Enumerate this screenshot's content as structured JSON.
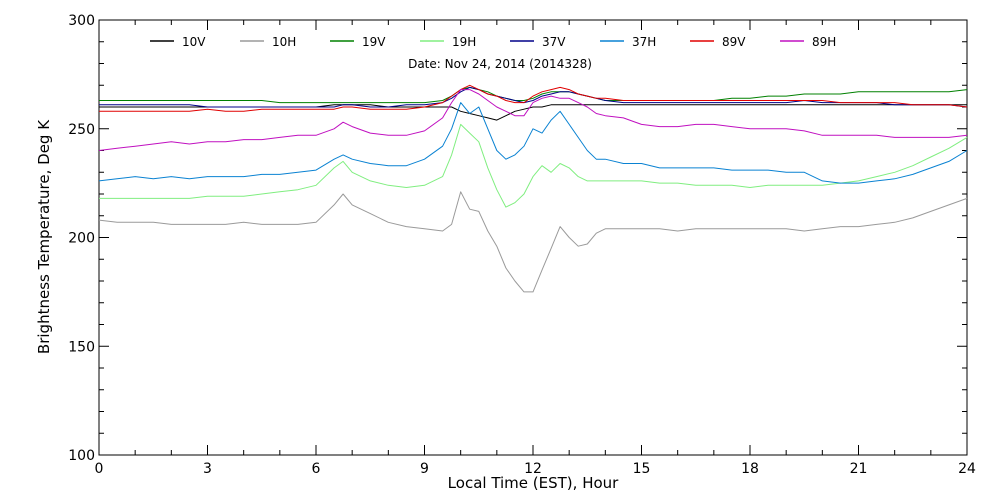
{
  "chart_data": {
    "type": "line",
    "annotation": "Date: Nov 24, 2014 (2014328)",
    "xlabel": "Local Time (EST), Hour",
    "ylabel": "Brightness Temperature, Deg K",
    "xlim": [
      0,
      24
    ],
    "ylim": [
      100,
      300
    ],
    "xticks": [
      0,
      3,
      6,
      9,
      12,
      15,
      18,
      21,
      24
    ],
    "yticks": [
      100,
      150,
      200,
      250,
      300
    ],
    "grid": false,
    "legend_position": "top",
    "x": [
      0,
      0.5,
      1,
      1.5,
      2,
      2.5,
      3,
      3.5,
      4,
      4.5,
      5,
      5.5,
      6,
      6.5,
      6.75,
      7,
      7.5,
      8,
      8.5,
      9,
      9.5,
      9.75,
      10,
      10.25,
      10.5,
      10.75,
      11,
      11.25,
      11.5,
      11.75,
      12,
      12.25,
      12.5,
      12.75,
      13,
      13.25,
      13.5,
      13.75,
      14,
      14.5,
      15,
      15.5,
      16,
      16.5,
      17,
      17.5,
      18,
      18.5,
      19,
      19.5,
      20,
      20.5,
      21,
      21.5,
      22,
      22.5,
      23,
      23.5,
      24
    ],
    "series": [
      {
        "name": "10V",
        "color": "#000000",
        "values": [
          260,
          260,
          260,
          260,
          260,
          260,
          260,
          260,
          260,
          260,
          260,
          260,
          260,
          261,
          261,
          261,
          261,
          260,
          260,
          260,
          260,
          260,
          258,
          257,
          256,
          255,
          254,
          256,
          258,
          259,
          260,
          260,
          261,
          261,
          261,
          261,
          261,
          261,
          261,
          261,
          261,
          261,
          261,
          261,
          261,
          261,
          261,
          261,
          261,
          261,
          261,
          261,
          261,
          261,
          261,
          261,
          261,
          261,
          261
        ]
      },
      {
        "name": "10H",
        "color": "#9a9a9a",
        "values": [
          208,
          207,
          207,
          207,
          206,
          206,
          206,
          206,
          207,
          206,
          206,
          206,
          207,
          215,
          220,
          215,
          211,
          207,
          205,
          204,
          203,
          206,
          221,
          213,
          212,
          203,
          196,
          186,
          180,
          175,
          175,
          185,
          195,
          205,
          200,
          196,
          197,
          202,
          204,
          204,
          204,
          204,
          203,
          204,
          204,
          204,
          204,
          204,
          204,
          203,
          204,
          205,
          205,
          206,
          207,
          209,
          212,
          215,
          218
        ]
      },
      {
        "name": "19V",
        "color": "#008000",
        "values": [
          263,
          263,
          263,
          263,
          263,
          263,
          263,
          263,
          263,
          263,
          262,
          262,
          262,
          262,
          262,
          262,
          262,
          262,
          262,
          262,
          263,
          265,
          268,
          269,
          268,
          267,
          265,
          264,
          263,
          263,
          264,
          266,
          267,
          267,
          267,
          266,
          265,
          264,
          263,
          263,
          263,
          263,
          263,
          263,
          263,
          264,
          264,
          265,
          265,
          266,
          266,
          266,
          267,
          267,
          267,
          267,
          267,
          267,
          268
        ]
      },
      {
        "name": "19H",
        "color": "#80ee80",
        "values": [
          218,
          218,
          218,
          218,
          218,
          218,
          219,
          219,
          219,
          220,
          221,
          222,
          224,
          232,
          235,
          230,
          226,
          224,
          223,
          224,
          228,
          238,
          252,
          248,
          244,
          232,
          222,
          214,
          216,
          220,
          228,
          233,
          230,
          234,
          232,
          228,
          226,
          226,
          226,
          226,
          226,
          225,
          225,
          224,
          224,
          224,
          223,
          224,
          224,
          224,
          224,
          225,
          226,
          228,
          230,
          233,
          237,
          241,
          246
        ]
      },
      {
        "name": "37V",
        "color": "#000088",
        "values": [
          261,
          261,
          261,
          261,
          261,
          261,
          260,
          260,
          260,
          260,
          260,
          260,
          260,
          260,
          261,
          261,
          260,
          260,
          261,
          261,
          262,
          264,
          267,
          269,
          268,
          266,
          265,
          264,
          263,
          262,
          263,
          265,
          266,
          267,
          267,
          266,
          265,
          264,
          263,
          262,
          262,
          262,
          262,
          262,
          262,
          262,
          262,
          262,
          262,
          263,
          262,
          262,
          262,
          262,
          261,
          261,
          261,
          261,
          260
        ]
      },
      {
        "name": "37H",
        "color": "#0a82d2",
        "values": [
          226,
          227,
          228,
          227,
          228,
          227,
          228,
          228,
          228,
          229,
          229,
          230,
          231,
          236,
          238,
          236,
          234,
          233,
          233,
          236,
          242,
          250,
          262,
          257,
          260,
          250,
          240,
          236,
          238,
          242,
          250,
          248,
          254,
          258,
          252,
          246,
          240,
          236,
          236,
          234,
          234,
          232,
          232,
          232,
          232,
          231,
          231,
          231,
          230,
          230,
          226,
          225,
          225,
          226,
          227,
          229,
          232,
          235,
          240
        ]
      },
      {
        "name": "89V",
        "color": "#e00000",
        "values": [
          258,
          258,
          258,
          258,
          258,
          258,
          259,
          258,
          258,
          259,
          259,
          259,
          259,
          259,
          260,
          260,
          259,
          259,
          259,
          260,
          262,
          265,
          268,
          270,
          268,
          266,
          265,
          263,
          262,
          262,
          265,
          267,
          268,
          269,
          268,
          266,
          265,
          264,
          264,
          263,
          263,
          263,
          263,
          263,
          263,
          263,
          263,
          263,
          263,
          263,
          263,
          262,
          262,
          262,
          262,
          261,
          261,
          261,
          260
        ]
      },
      {
        "name": "89H",
        "color": "#c010c0",
        "values": [
          240,
          241,
          242,
          243,
          244,
          243,
          244,
          244,
          245,
          245,
          246,
          247,
          247,
          250,
          253,
          251,
          248,
          247,
          247,
          249,
          255,
          262,
          268,
          268,
          266,
          263,
          260,
          258,
          256,
          256,
          262,
          264,
          265,
          264,
          264,
          262,
          260,
          257,
          256,
          255,
          252,
          251,
          251,
          252,
          252,
          251,
          250,
          250,
          250,
          249,
          247,
          247,
          247,
          247,
          246,
          246,
          246,
          246,
          247
        ]
      }
    ]
  }
}
